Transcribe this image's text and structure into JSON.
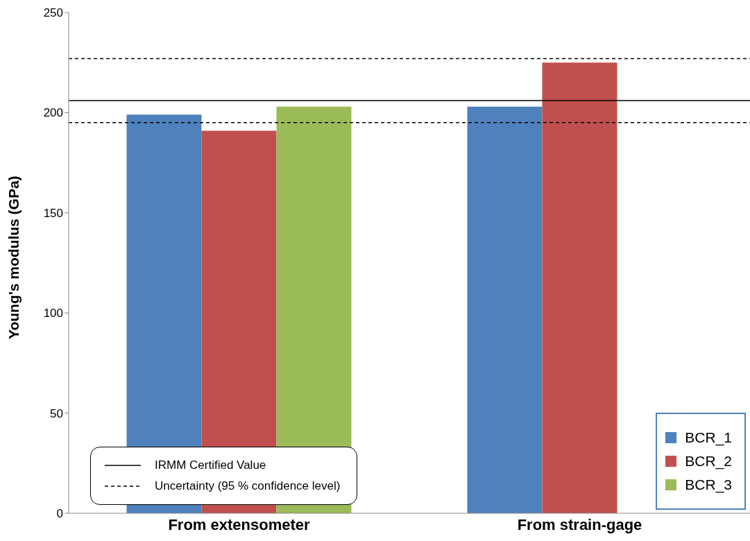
{
  "chart_data": {
    "type": "bar",
    "ylabel": "Young's modulus (GPa)",
    "categories": [
      "From extensometer",
      "From strain-gage"
    ],
    "series": [
      {
        "name": "BCR_1",
        "color": "#4f81bd",
        "values": [
          199,
          203
        ]
      },
      {
        "name": "BCR_2",
        "color": "#c0504d",
        "values": [
          191,
          225
        ]
      },
      {
        "name": "BCR_3",
        "color": "#9bbb59",
        "values": [
          203,
          null
        ]
      }
    ],
    "ylim": [
      0,
      250
    ],
    "yticks": [
      0,
      50,
      100,
      150,
      200,
      250
    ],
    "legend": "bottom right",
    "ref_lines": [
      {
        "axis": "y",
        "value": 206,
        "label": "IRMM Certified Value",
        "color": "#000000",
        "line_style": "solid"
      },
      {
        "axis": "y",
        "value": 227,
        "label": "Uncertainty (95 % confidence level)",
        "color": "#000000",
        "line_style": "dashed"
      },
      {
        "axis": "y",
        "value": 195,
        "label": null,
        "color": "#000000",
        "line_style": "dashed"
      }
    ]
  }
}
